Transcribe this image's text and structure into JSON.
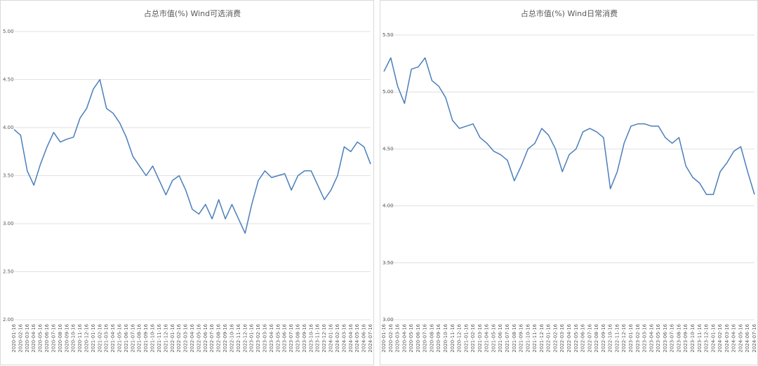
{
  "chart_data": [
    {
      "type": "line",
      "title": "占总市值(%) Wind可选消费",
      "categories": [
        "2020-01-16",
        "2020-02-16",
        "2020-03-16",
        "2020-04-16",
        "2020-05-16",
        "2020-06-16",
        "2020-07-16",
        "2020-08-16",
        "2020-09-16",
        "2020-10-16",
        "2020-11-16",
        "2020-12-16",
        "2021-01-16",
        "2021-02-16",
        "2021-03-16",
        "2021-04-16",
        "2021-05-16",
        "2021-06-16",
        "2021-07-16",
        "2021-08-16",
        "2021-09-16",
        "2021-10-16",
        "2021-11-16",
        "2021-12-16",
        "2022-01-16",
        "2022-02-16",
        "2022-03-16",
        "2022-04-16",
        "2022-05-16",
        "2022-06-16",
        "2022-07-16",
        "2022-08-16",
        "2022-09-16",
        "2022-10-16",
        "2022-11-16",
        "2022-12-16",
        "2023-01-16",
        "2023-02-16",
        "2023-03-16",
        "2023-04-16",
        "2023-05-16",
        "2023-06-16",
        "2023-07-16",
        "2023-08-16",
        "2023-09-16",
        "2023-10-16",
        "2023-11-16",
        "2023-12-16",
        "2024-01-16",
        "2024-02-16",
        "2024-03-16",
        "2024-04-16",
        "2024-05-16",
        "2024-06-16",
        "2024-07-16"
      ],
      "values": [
        3.98,
        3.92,
        3.55,
        3.4,
        3.62,
        3.8,
        3.95,
        3.85,
        3.88,
        3.9,
        4.1,
        4.2,
        4.4,
        4.5,
        4.2,
        4.15,
        4.05,
        3.9,
        3.7,
        3.6,
        3.5,
        3.6,
        3.45,
        3.3,
        3.45,
        3.5,
        3.35,
        3.15,
        3.1,
        3.2,
        3.05,
        3.25,
        3.05,
        3.2,
        3.05,
        2.9,
        3.2,
        3.45,
        3.55,
        3.48,
        3.5,
        3.52,
        3.35,
        3.5,
        3.55,
        3.55,
        3.4,
        3.25,
        3.35,
        3.5,
        3.8,
        3.75,
        3.85,
        3.8,
        3.62
      ],
      "color": "#4a7ebb",
      "grid": true,
      "ylim": [
        2.0,
        5.0
      ],
      "yticks": [
        {
          "value": 2.0,
          "label": "2.00"
        },
        {
          "value": 2.5,
          "label": "2.50"
        },
        {
          "value": 3.0,
          "label": "3.00"
        },
        {
          "value": 3.5,
          "label": "3.50"
        },
        {
          "value": 4.0,
          "label": "4.00"
        },
        {
          "value": 4.5,
          "label": "4.50"
        },
        {
          "value": 5.0,
          "label": "5.00"
        }
      ]
    },
    {
      "type": "line",
      "title": "占总市值(%) Wind日常消费",
      "categories": [
        "2020-01-16",
        "2020-02-16",
        "2020-03-16",
        "2020-04-16",
        "2020-05-16",
        "2020-06-16",
        "2020-07-16",
        "2020-08-16",
        "2020-09-16",
        "2020-10-16",
        "2020-11-16",
        "2020-12-16",
        "2021-01-16",
        "2021-02-16",
        "2021-03-16",
        "2021-04-16",
        "2021-05-16",
        "2021-06-16",
        "2021-07-16",
        "2021-08-16",
        "2021-09-16",
        "2021-10-16",
        "2021-11-16",
        "2021-12-16",
        "2022-01-16",
        "2022-02-16",
        "2022-03-16",
        "2022-04-16",
        "2022-05-16",
        "2022-06-16",
        "2022-07-16",
        "2022-08-16",
        "2022-09-16",
        "2022-10-16",
        "2022-11-16",
        "2022-12-16",
        "2023-01-16",
        "2023-02-16",
        "2023-03-16",
        "2023-04-16",
        "2023-05-16",
        "2023-06-16",
        "2023-07-16",
        "2023-08-16",
        "2023-09-16",
        "2023-10-16",
        "2023-11-16",
        "2023-12-16",
        "2024-01-16",
        "2024-02-16",
        "2024-03-16",
        "2024-04-16",
        "2024-05-16",
        "2024-06-16",
        "2024-07-16"
      ],
      "values": [
        5.18,
        5.3,
        5.05,
        4.9,
        5.2,
        5.22,
        5.3,
        5.1,
        5.05,
        4.95,
        4.75,
        4.68,
        4.7,
        4.72,
        4.6,
        4.55,
        4.48,
        4.45,
        4.4,
        4.22,
        4.35,
        4.5,
        4.55,
        4.68,
        4.62,
        4.5,
        4.3,
        4.45,
        4.5,
        4.65,
        4.68,
        4.65,
        4.6,
        4.15,
        4.3,
        4.55,
        4.7,
        4.72,
        4.72,
        4.7,
        4.7,
        4.6,
        4.55,
        4.6,
        4.35,
        4.25,
        4.2,
        4.1,
        4.1,
        4.3,
        4.38,
        4.48,
        4.52,
        4.3,
        4.1
      ],
      "color": "#4a7ebb",
      "grid": true,
      "ylim": [
        3.0,
        5.5
      ],
      "yticks": [
        {
          "value": 3.0,
          "label": "3.00"
        },
        {
          "value": 3.5,
          "label": "3.50"
        },
        {
          "value": 4.0,
          "label": "4.00"
        },
        {
          "value": 4.5,
          "label": "4.50"
        },
        {
          "value": 5.0,
          "label": "5.00"
        },
        {
          "value": 5.5,
          "label": "5.50"
        }
      ]
    }
  ]
}
